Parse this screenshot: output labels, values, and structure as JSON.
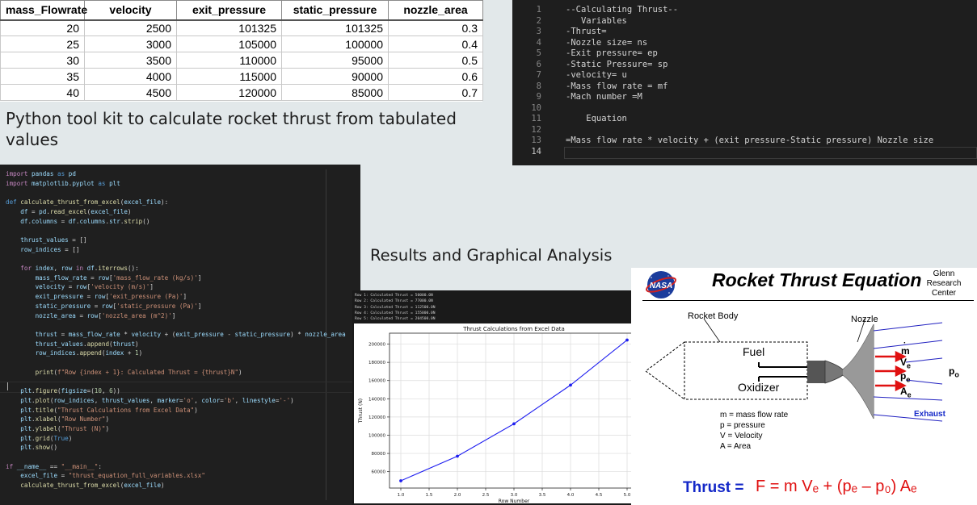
{
  "excel": {
    "headers": [
      "mass_Flowrate",
      "velocity",
      "exit_pressure",
      "static_pressure",
      "nozzle_area"
    ],
    "rows": [
      [
        "20",
        "2500",
        "101325",
        "101325",
        "0.3"
      ],
      [
        "25",
        "3000",
        "105000",
        "100000",
        "0.4"
      ],
      [
        "30",
        "3500",
        "110000",
        "95000",
        "0.5"
      ],
      [
        "35",
        "4000",
        "115000",
        "90000",
        "0.6"
      ],
      [
        "40",
        "4500",
        "120000",
        "85000",
        "0.7"
      ]
    ]
  },
  "captions": {
    "toolkit": "Python tool kit to calculate rocket thrust from tabulated values",
    "results": "Results and Graphical Analysis"
  },
  "variables_editor": {
    "lines": [
      {
        "n": "1",
        "text": "--Calculating Thrust--"
      },
      {
        "n": "2",
        "text": "   Variables"
      },
      {
        "n": "3",
        "text": "-Thrust="
      },
      {
        "n": "4",
        "text": "-Nozzle size= ns"
      },
      {
        "n": "5",
        "text": "-Exit pressure= ep"
      },
      {
        "n": "6",
        "text": "-Static Pressure= sp"
      },
      {
        "n": "7",
        "text": "-velocity= u"
      },
      {
        "n": "8",
        "text": "-Mass flow rate = mf"
      },
      {
        "n": "9",
        "text": "-Mach number =M"
      },
      {
        "n": "10",
        "text": ""
      },
      {
        "n": "11",
        "text": "    Equation"
      },
      {
        "n": "12",
        "text": ""
      },
      {
        "n": "13",
        "text": "=Mass flow rate * velocity + (exit pressure-Static pressure) Nozzle size"
      },
      {
        "n": "14",
        "text": ""
      }
    ]
  },
  "python_code": {
    "lines": [
      {
        "text": "import pandas as pd"
      },
      {
        "text": "import matplotlib.pyplot as plt"
      },
      {
        "text": ""
      },
      {
        "text": "def calculate_thrust_from_excel(excel_file):"
      },
      {
        "text": "    df = pd.read_excel(excel_file)"
      },
      {
        "text": "    df.columns = df.columns.str.strip()"
      },
      {
        "text": ""
      },
      {
        "text": "    thrust_values = []"
      },
      {
        "text": "    row_indices = []"
      },
      {
        "text": ""
      },
      {
        "text": "    for index, row in df.iterrows():"
      },
      {
        "text": "        mass_flow_rate = row['mass_flow_rate (kg/s)']"
      },
      {
        "text": "        velocity = row['velocity (m/s)']"
      },
      {
        "text": "        exit_pressure = row['exit_pressure (Pa)']"
      },
      {
        "text": "        static_pressure = row['static_pressure (Pa)']"
      },
      {
        "text": "        nozzle_area = row['nozzle_area (m^2)']"
      },
      {
        "text": ""
      },
      {
        "text": "        thrust = mass_flow_rate * velocity + (exit_pressure - static_pressure) * nozzle_area"
      },
      {
        "text": "        thrust_values.append(thrust)"
      },
      {
        "text": "        row_indices.append(index + 1)"
      },
      {
        "text": ""
      },
      {
        "text": "        print(f\"Row {index + 1}: Calculated Thrust = {thrust}N\")"
      },
      {
        "text": ""
      },
      {
        "text": "    plt.figure(figsize=(10, 6))"
      },
      {
        "text": "    plt.plot(row_indices, thrust_values, marker='o', color='b', linestyle='-')"
      },
      {
        "text": "    plt.title(\"Thrust Calculations from Excel Data\")"
      },
      {
        "text": "    plt.xlabel(\"Row Number\")"
      },
      {
        "text": "    plt.ylabel(\"Thrust (N)\")"
      },
      {
        "text": "    plt.grid(True)"
      },
      {
        "text": "    plt.show()"
      },
      {
        "text": ""
      },
      {
        "text": "if __name__ == \"__main__\":"
      },
      {
        "text": "    excel_file = \"thrust_equation_full_variables.xlsx\""
      },
      {
        "text": "    calculate_thrust_from_excel(excel_file)"
      }
    ]
  },
  "output": {
    "lines": [
      "Row 1: Calculated Thrust = 50000.0N",
      "Row 2: Calculated Thrust = 77000.0N",
      "Row 3: Calculated Thrust = 112500.0N",
      "Row 4: Calculated Thrust = 155000.0N",
      "Row 5: Calculated Thrust = 204500.0N"
    ]
  },
  "chart_data": {
    "type": "line",
    "title": "Thrust Calculations from Excel Data",
    "xlabel": "Row Number",
    "ylabel": "Thrust (N)",
    "x": [
      1,
      2,
      3,
      4,
      5
    ],
    "series": [
      {
        "values": [
          50000,
          77000,
          112500,
          155000,
          204500
        ],
        "color": "#1f1ff0",
        "marker": "o"
      }
    ],
    "xlim": [
      0.8,
      5.2
    ],
    "ylim": [
      42000,
      212000
    ],
    "xticks": [
      1.0,
      1.5,
      2.0,
      2.5,
      3.0,
      3.5,
      4.0,
      4.5,
      5.0
    ],
    "yticks": [
      60000,
      80000,
      100000,
      120000,
      140000,
      160000,
      180000,
      200000
    ],
    "grid": true
  },
  "nasa_diagram": {
    "logo_text": "NASA",
    "title": "Rocket Thrust Equation",
    "org": "Glenn Research Center",
    "labels": {
      "rocket_body": "Rocket Body",
      "nozzle": "Nozzle",
      "fuel": "Fuel",
      "oxidizer": "Oxidizer",
      "exhaust": "Exhaust",
      "m_dot": "m",
      "ve": "V",
      "ve_sub": "e",
      "pe": "p",
      "pe_sub": "e",
      "ae": "A",
      "ae_sub": "e",
      "p0": "p",
      "p0_sub": "o"
    },
    "legend": [
      "m = mass flow rate",
      "p = pressure",
      "V = Velocity",
      "A = Area"
    ],
    "thrust_label": "Thrust =",
    "formula": "F = m Vₑ + (pₑ – p₀) Aₑ",
    "colors": {
      "thrust_label": "#1428c8",
      "formula": "#e01010",
      "arrows": "#e01010",
      "exhaust_lines": "#2020c0"
    }
  }
}
